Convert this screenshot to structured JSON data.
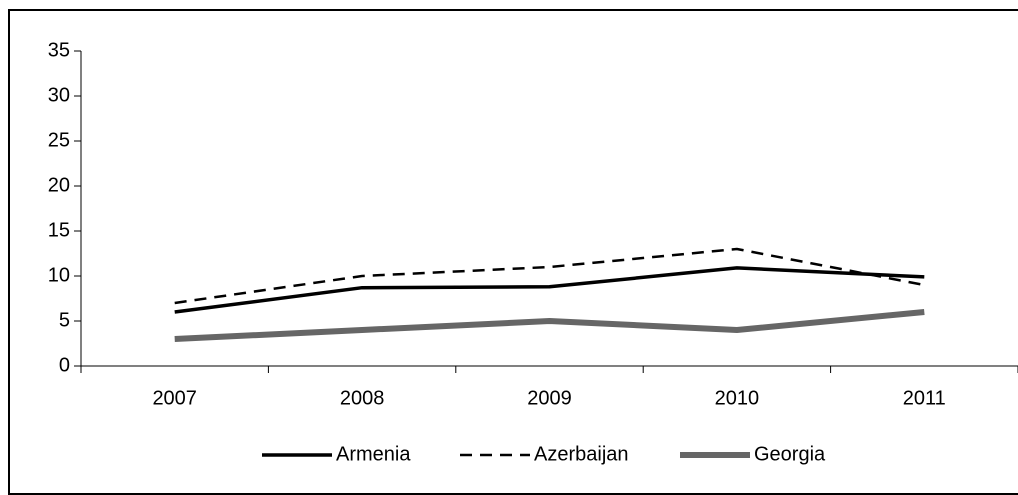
{
  "chart_data": {
    "type": "line",
    "categories": [
      "2007",
      "2008",
      "2009",
      "2010",
      "2011"
    ],
    "series": [
      {
        "name": "Armenia",
        "color": "#000000",
        "line_style": "solid",
        "values": [
          6.0,
          8.7,
          8.8,
          10.9,
          9.9
        ]
      },
      {
        "name": "Azerbaijan",
        "color": "#000000",
        "line_style": "dashed",
        "values": [
          7,
          10,
          11,
          13,
          9
        ]
      },
      {
        "name": "Georgia",
        "color": "#666666",
        "line_style": "solid",
        "values": [
          3,
          4,
          5,
          4,
          6
        ]
      }
    ],
    "ylim": [
      0,
      35
    ],
    "yticks": [
      0,
      5,
      10,
      15,
      20,
      25,
      30,
      35
    ],
    "legend": "bottom"
  }
}
